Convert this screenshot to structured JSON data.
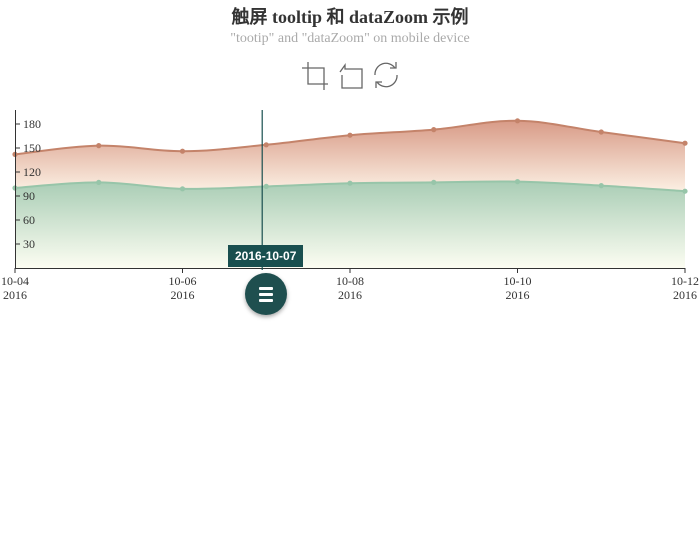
{
  "title": "触屏 tooltip 和 dataZoom 示例",
  "subtitle": "\"tootip\" and \"dataZoom\" on mobile device",
  "toolbox": {
    "icons": [
      "zoom-area-icon",
      "zoom-back-icon",
      "restore-icon"
    ],
    "color": "#666666"
  },
  "axis_pointer": {
    "label": "2016-10-07",
    "value": "2016-10-07",
    "color": "#194f4f"
  },
  "colors": {
    "series_upper": "#c4836a",
    "series_lower": "#97c5a9",
    "pointer": "#194f4f"
  },
  "chart_data": {
    "type": "area",
    "x": [
      "2016-10-04",
      "2016-10-05",
      "2016-10-06",
      "2016-10-07",
      "2016-10-08",
      "2016-10-09",
      "2016-10-10",
      "2016-10-11",
      "2016-10-12"
    ],
    "x_tick_labels": [
      {
        "date": "2016-10-04",
        "line1": "10-04",
        "line2": "2016"
      },
      {
        "date": "2016-10-06",
        "line1": "10-06",
        "line2": "2016"
      },
      {
        "date": "2016-10-08",
        "line1": "10-08",
        "line2": "2016"
      },
      {
        "date": "2016-10-10",
        "line1": "10-10",
        "line2": "2016"
      },
      {
        "date": "2016-10-12",
        "line1": "10-12",
        "line2": "2016"
      }
    ],
    "y_ticks": [
      30,
      60,
      90,
      120,
      150,
      180
    ],
    "ylim": [
      0,
      210
    ],
    "series": [
      {
        "values": [
          142,
          153,
          146,
          154,
          166,
          173,
          184,
          170,
          156
        ],
        "color": "#c4836a"
      },
      {
        "values": [
          100,
          107,
          99,
          102,
          106,
          107,
          108,
          103,
          96
        ],
        "color": "#97c5a9"
      }
    ],
    "smooth": true,
    "grid": false,
    "legend": "none"
  }
}
